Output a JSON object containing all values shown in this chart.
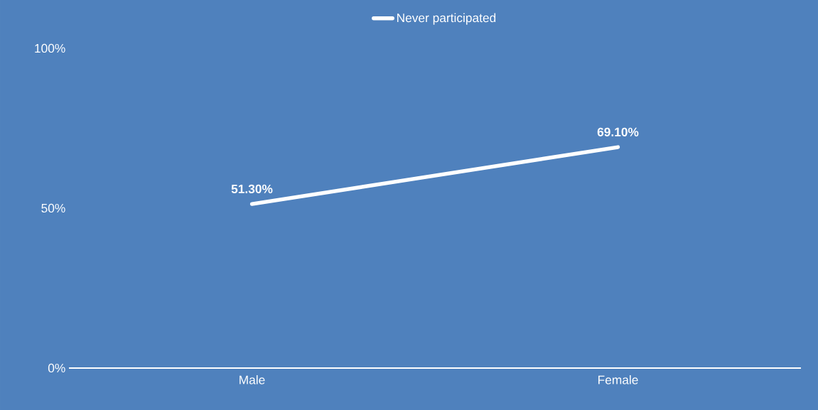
{
  "chart_data": {
    "type": "line",
    "categories": [
      "Male",
      "Female"
    ],
    "series": [
      {
        "name": "Never participated",
        "color": "#ffffff",
        "values": [
          51.3,
          69.1
        ],
        "value_labels": [
          "51.30%",
          "69.10%"
        ]
      }
    ],
    "ylim": [
      0,
      100
    ],
    "yticks": [
      {
        "value": 0,
        "label": "0%"
      },
      {
        "value": 50,
        "label": "50%"
      },
      {
        "value": 100,
        "label": "100%"
      }
    ],
    "grid": false,
    "legend": "top"
  }
}
